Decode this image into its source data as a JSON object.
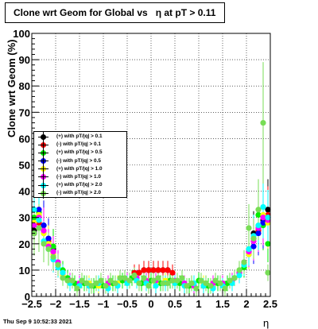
{
  "title": "Clone wrt Geom for Global vs   η at pT > 0.11",
  "timestamp": "Thu Sep  9 10:52:33 2021",
  "chart_data": {
    "type": "scatter",
    "title": "Clone wrt Geom for Global vs   η at pT > 0.11",
    "xlabel": "η",
    "ylabel": "Clone wrt Geom (%)",
    "xlim": [
      -2.5,
      2.5
    ],
    "ylim": [
      0,
      100
    ],
    "x_ticks": [
      "−2.5",
      "−2",
      "−1.5",
      "−1",
      "−0.5",
      "0",
      "0.5",
      "1",
      "1.5",
      "2",
      "2.5"
    ],
    "y_ticks": [
      "0",
      "10",
      "20",
      "30",
      "40",
      "50",
      "60",
      "70",
      "80",
      "90",
      "100"
    ],
    "grid": true,
    "legend_position": "middle-left",
    "series": [
      {
        "name": "(+) with pT/|q| > 0.1",
        "color": "#000000",
        "x": [
          -2.45,
          -2.35,
          -2.25,
          -2.15,
          -2.05,
          -0.25,
          -0.15,
          -0.05,
          0.05,
          0.15,
          0.25,
          0.35,
          2.05,
          2.15,
          2.25,
          2.35,
          2.45
        ],
        "y": [
          25,
          31,
          27,
          22,
          18,
          9,
          10,
          10,
          10,
          10,
          10,
          10,
          17,
          24,
          26,
          29,
          33
        ]
      },
      {
        "name": "(-) with pT/|q| > 0.1",
        "color": "#ff0000",
        "x": [
          -2.45,
          -2.35,
          -2.25,
          -2.15,
          -2.05,
          -0.35,
          -0.25,
          -0.15,
          -0.05,
          0.05,
          0.15,
          0.25,
          0.35,
          0.45,
          2.05,
          2.15,
          2.25,
          2.35,
          2.45
        ],
        "y": [
          24,
          28,
          25,
          21,
          19,
          9,
          9,
          10,
          10,
          10,
          10,
          10,
          10,
          9,
          18,
          22,
          25,
          30,
          31
        ]
      },
      {
        "name": "(+) with pT/|q| > 0.5",
        "color": "#00ee00",
        "x": [
          -2.45,
          -2.35,
          -2.25,
          -2.15,
          -2.05,
          -1.95,
          -1.85,
          -1.75,
          -1.6,
          -1.4,
          -1.2,
          -1.0,
          -0.8,
          -0.6,
          -0.4,
          -0.2,
          0.0,
          0.2,
          0.4,
          0.6,
          0.8,
          1.0,
          1.2,
          1.4,
          1.6,
          1.75,
          1.85,
          1.95,
          2.05,
          2.15,
          2.25,
          2.35,
          2.45
        ],
        "y": [
          30,
          32,
          24,
          20,
          19,
          13,
          10,
          7,
          5,
          5,
          4,
          4,
          5,
          6,
          7,
          5,
          6,
          5,
          6,
          5,
          4,
          6,
          4,
          5,
          5,
          7,
          9,
          11,
          18,
          22,
          31,
          27,
          20
        ]
      },
      {
        "name": "(-) with pT/|q| > 0.5",
        "color": "#0000ff",
        "x": [
          -2.45,
          -2.35,
          -2.25,
          -2.15,
          -2.05,
          -1.95,
          -1.85,
          2.05,
          2.15,
          2.25,
          2.35,
          2.45
        ],
        "y": [
          24,
          33,
          27,
          22,
          17,
          12,
          8,
          16,
          19,
          24,
          28,
          30
        ]
      },
      {
        "name": "(+) with pT/|q| > 1.0",
        "color": "#ffff00",
        "x": [
          -2.45,
          -2.35,
          -2.25,
          -2.15,
          -2.05,
          -1.95,
          -1.85,
          -1.7,
          -1.5,
          -1.3,
          -1.1,
          -0.9,
          -0.7,
          -0.5,
          -0.3,
          -0.1,
          0.1,
          0.3,
          0.5,
          0.7,
          0.9,
          1.1,
          1.3,
          1.5,
          1.7,
          1.85,
          1.95,
          2.05,
          2.15,
          2.25,
          2.35,
          2.45
        ],
        "y": [
          28,
          31,
          24,
          20,
          16,
          12,
          8,
          6,
          4,
          5,
          4,
          4,
          5,
          6,
          7,
          6,
          5,
          6,
          5,
          4,
          4,
          5,
          5,
          4,
          6,
          8,
          12,
          16,
          22,
          27,
          31,
          28
        ]
      },
      {
        "name": "(-) with pT/|q| > 1.0",
        "color": "#ff00ff",
        "x": [
          -2.45,
          -2.35,
          -2.25,
          -2.15,
          -2.05,
          -1.95,
          -1.85,
          -1.7,
          -1.5,
          -1.3,
          -1.1,
          -0.9,
          -0.7,
          -0.5,
          -0.3,
          -0.1,
          0.1,
          0.3,
          0.5,
          0.7,
          0.9,
          1.1,
          1.3,
          1.5,
          1.7,
          1.85,
          1.95,
          2.05,
          2.15,
          2.25,
          2.35,
          2.45
        ],
        "y": [
          27,
          30,
          25,
          19,
          17,
          13,
          9,
          6,
          5,
          4,
          5,
          5,
          4,
          6,
          7,
          6,
          6,
          5,
          6,
          5,
          4,
          4,
          5,
          5,
          6,
          9,
          13,
          17,
          21,
          26,
          30,
          29
        ]
      },
      {
        "name": "(+) with pT/|q| > 2.0",
        "color": "#00ffff",
        "x": [
          -2.45,
          -2.35,
          -2.25,
          -2.15,
          -2.05,
          -1.95,
          -1.85,
          -1.7,
          -1.5,
          -1.3,
          -1.1,
          -0.9,
          -0.7,
          -0.5,
          -0.3,
          -0.1,
          0.1,
          0.3,
          0.5,
          0.7,
          0.9,
          1.1,
          1.3,
          1.5,
          1.7,
          1.85,
          1.95,
          2.05,
          2.15,
          2.25,
          2.35,
          2.45
        ],
        "y": [
          33,
          29,
          21,
          18,
          14,
          11,
          9,
          5,
          4,
          4,
          5,
          3,
          4,
          5,
          6,
          5,
          4,
          5,
          5,
          4,
          5,
          4,
          3,
          4,
          5,
          8,
          12,
          18,
          23,
          27,
          34,
          30
        ]
      },
      {
        "name": "(-) with pT/|q| > 2.0",
        "color": "#77dd55",
        "x": [
          -2.45,
          -2.35,
          -2.25,
          -2.15,
          -2.05,
          -1.95,
          -1.85,
          -1.75,
          -1.65,
          -1.55,
          -1.45,
          -1.35,
          -1.25,
          -1.15,
          -1.05,
          -0.95,
          -0.85,
          -0.75,
          -0.65,
          -0.55,
          -0.45,
          -0.35,
          -0.25,
          -0.15,
          -0.05,
          0.05,
          0.15,
          0.25,
          0.35,
          0.45,
          0.55,
          0.65,
          0.75,
          0.85,
          0.95,
          1.05,
          1.15,
          1.25,
          1.35,
          1.45,
          1.55,
          1.65,
          1.75,
          1.85,
          1.95,
          2.05,
          2.15,
          2.25,
          2.35,
          2.45
        ],
        "y": [
          24,
          26,
          20,
          18,
          15,
          12,
          7,
          6,
          6,
          3,
          6,
          5,
          4,
          5,
          6,
          4,
          6,
          5,
          7,
          7,
          6,
          8,
          5,
          7,
          4,
          6,
          7,
          5,
          5,
          6,
          6,
          7,
          4,
          5,
          3,
          6,
          5,
          4,
          6,
          5,
          3,
          6,
          7,
          10,
          13,
          26,
          22,
          33,
          66,
          9
        ]
      }
    ]
  }
}
